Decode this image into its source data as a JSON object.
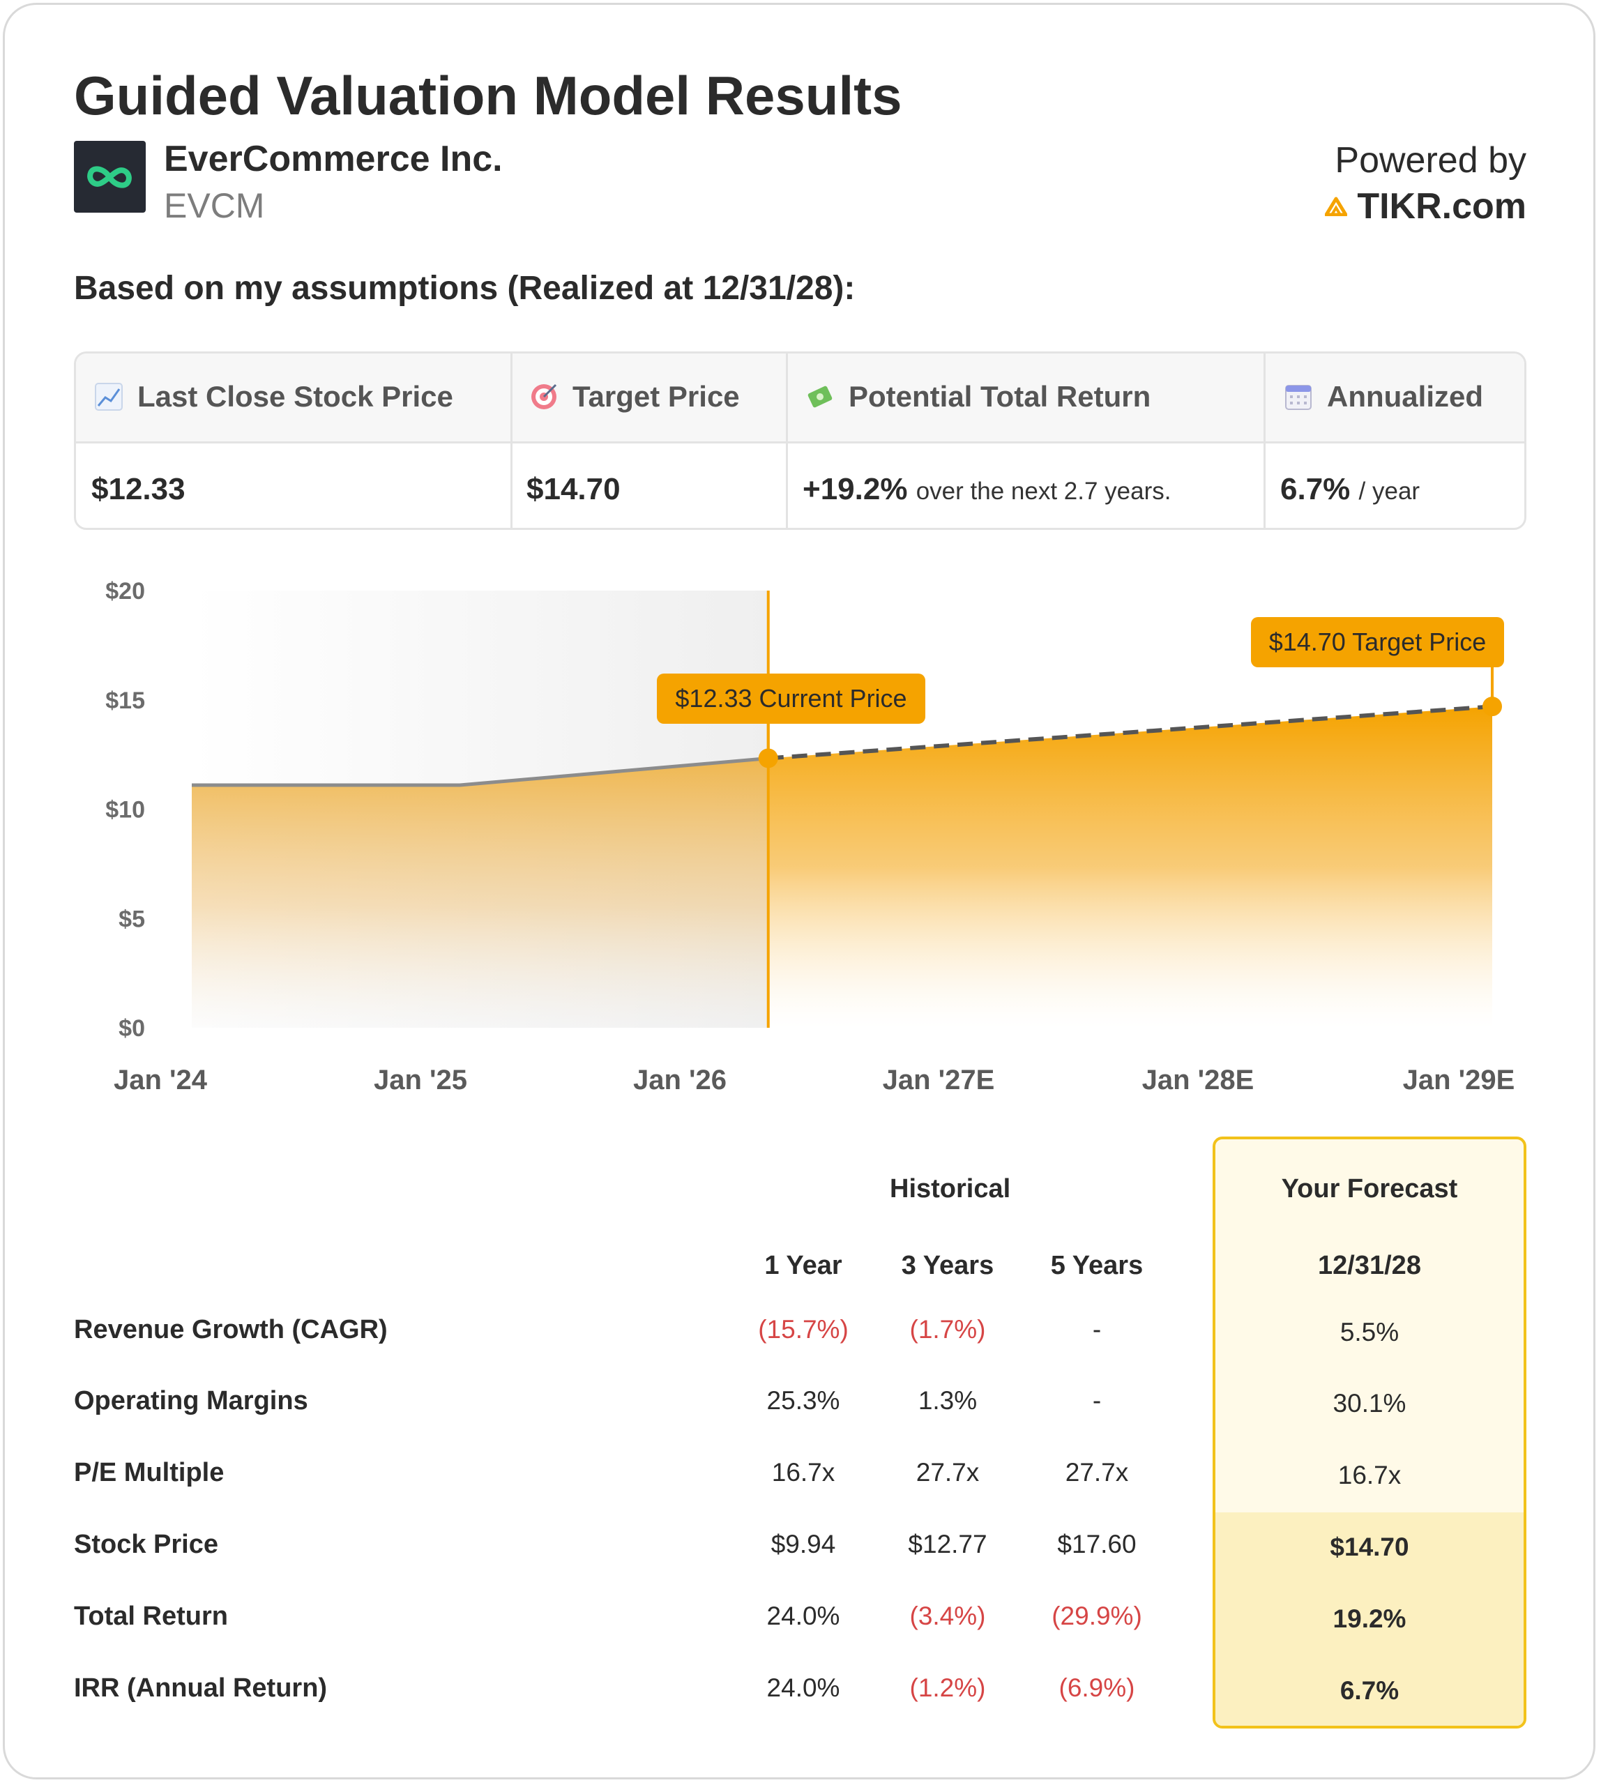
{
  "header": {
    "title": "Guided Valuation Model Results",
    "company": "EverCommerce Inc.",
    "ticker": "EVCM",
    "powered_by": "Powered by",
    "brand": "TIKR.com"
  },
  "assumptions_heading": "Based on my assumptions (Realized at 12/31/28):",
  "metrics": {
    "last_close_label": "Last Close Stock Price",
    "last_close_value": "$12.33",
    "target_label": "Target Price",
    "target_value": "$14.70",
    "return_label": "Potential Total Return",
    "return_value": "+19.2%",
    "return_suffix": "over the next 2.7 years.",
    "annualized_label": "Annualized",
    "annualized_value": "6.7%",
    "annualized_suffix": "/ year"
  },
  "colors": {
    "accent": "#f5a300",
    "historical_line": "#8c8c8c",
    "forecast_line": "#555555",
    "negative": "#d64545",
    "forecast_border": "#f2c21b"
  },
  "chart_data": {
    "type": "area",
    "x": [
      "Jan '24",
      "Jan '25",
      "Jan '26",
      "Jan '27E",
      "Jan '28E",
      "Jan '29E"
    ],
    "ylim": [
      0,
      20
    ],
    "yticks": [
      "$0",
      "$5",
      "$10",
      "$15",
      "$20"
    ],
    "series": [
      {
        "values": [
          [
            2024.0,
            11.1
          ],
          [
            2025.0,
            11.1
          ],
          [
            2026.15,
            12.33
          ]
        ]
      },
      {
        "values": [
          [
            2026.15,
            12.33
          ],
          [
            2028.85,
            14.7
          ]
        ]
      }
    ],
    "annotations": {
      "current": {
        "x": 2026.15,
        "value": 12.33,
        "label": "$12.33 Current Price"
      },
      "target": {
        "x": 2028.85,
        "value": 14.7,
        "label": "$14.70 Target Price"
      }
    }
  },
  "table": {
    "historical_label": "Historical",
    "forecast_label": "Your Forecast",
    "columns": [
      "1 Year",
      "3 Years",
      "5 Years"
    ],
    "forecast_date": "12/31/28",
    "rows": [
      {
        "label": "Revenue Growth (CAGR)",
        "values": [
          "(15.7%)",
          "(1.7%)",
          "-"
        ],
        "forecast": "5.5%"
      },
      {
        "label": "Operating Margins",
        "values": [
          "25.3%",
          "1.3%",
          "-"
        ],
        "forecast": "30.1%"
      },
      {
        "label": "P/E Multiple",
        "values": [
          "16.7x",
          "27.7x",
          "27.7x"
        ],
        "forecast": "16.7x"
      },
      {
        "label": "Stock Price",
        "values": [
          "$9.94",
          "$12.77",
          "$17.60"
        ],
        "forecast": "$14.70"
      },
      {
        "label": "Total Return",
        "values": [
          "24.0%",
          "(3.4%)",
          "(29.9%)"
        ],
        "forecast": "19.2%"
      },
      {
        "label": "IRR (Annual Return)",
        "values": [
          "24.0%",
          "(1.2%)",
          "(6.9%)"
        ],
        "forecast": "6.7%"
      }
    ]
  }
}
